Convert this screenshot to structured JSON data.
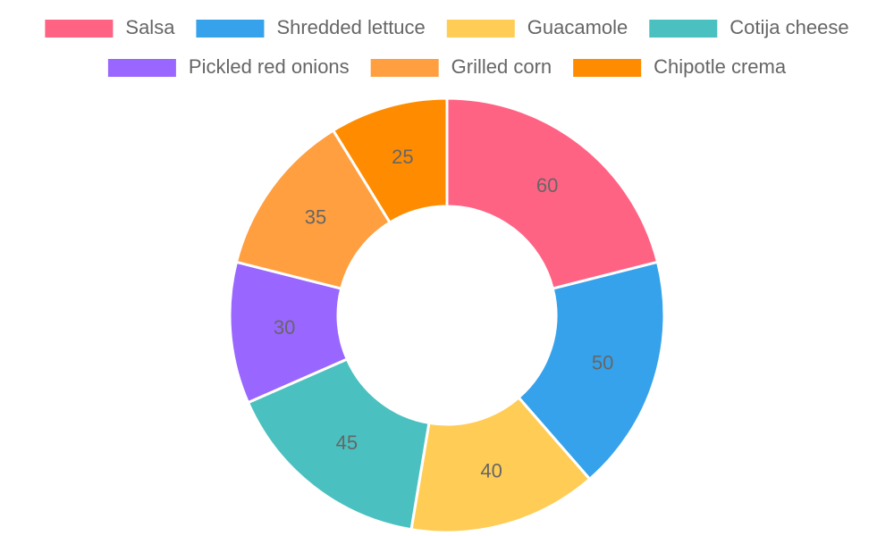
{
  "chart_data": {
    "type": "doughnut",
    "categories": [
      "Salsa",
      "Shredded lettuce",
      "Guacamole",
      "Cotija cheese",
      "Pickled red onions",
      "Grilled corn",
      "Chipotle crema"
    ],
    "values": [
      60,
      50,
      40,
      45,
      30,
      35,
      25
    ],
    "colors": [
      "#ff6384",
      "#36a2eb",
      "#ffcd56",
      "#4bc0c0",
      "#9966ff",
      "#ff9f40",
      "#ff8c00"
    ],
    "legend": "top"
  }
}
